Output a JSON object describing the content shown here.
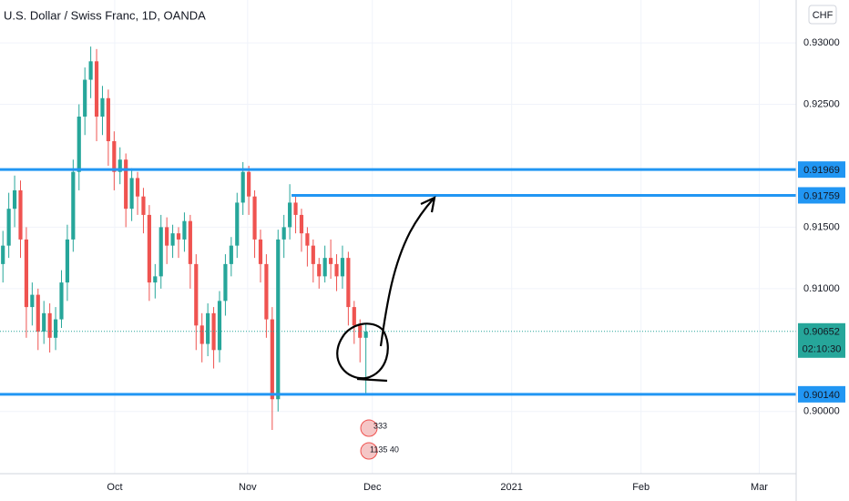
{
  "chart_data": {
    "type": "candlestick",
    "title": "U.S. Dollar / Swiss Franc, 1D, OANDA",
    "currency": "CHF",
    "up_color": "#26a69a",
    "down_color": "#ef5350",
    "line_color": "#2196f3",
    "grid": true,
    "open": [
      0.912,
      0.9135,
      0.9165,
      0.918,
      0.914,
      0.9085,
      0.9095,
      0.9065,
      0.908,
      0.906,
      0.9075,
      0.9105,
      0.914,
      0.9195,
      0.924,
      0.927,
      0.9285,
      0.924,
      0.9255,
      0.922,
      0.9195,
      0.9205,
      0.9165,
      0.919,
      0.9175,
      0.916,
      0.9105,
      0.911,
      0.915,
      0.9135,
      0.9145,
      0.914,
      0.9155,
      0.912,
      0.907,
      0.9055,
      0.908,
      0.905,
      0.909,
      0.912,
      0.9135,
      0.917,
      0.9195,
      0.9175,
      0.914,
      0.912,
      0.9075,
      0.901,
      0.914,
      0.915,
      0.917,
      0.916,
      0.9145,
      0.9135,
      0.912,
      0.911,
      0.9125,
      0.912,
      0.911,
      0.9125,
      0.9085,
      0.907,
      0.906
    ],
    "high": [
      0.9147,
      0.9178,
      0.9192,
      0.9188,
      0.915,
      0.9105,
      0.91,
      0.909,
      0.9088,
      0.9085,
      0.9115,
      0.9152,
      0.9205,
      0.925,
      0.928,
      0.9297,
      0.9295,
      0.9265,
      0.9262,
      0.9228,
      0.9215,
      0.921,
      0.9198,
      0.9195,
      0.9182,
      0.9168,
      0.912,
      0.916,
      0.9158,
      0.9152,
      0.915,
      0.9162,
      0.916,
      0.9128,
      0.908,
      0.9088,
      0.9085,
      0.9098,
      0.9128,
      0.9142,
      0.9178,
      0.9203,
      0.92,
      0.918,
      0.9148,
      0.9128,
      0.9085,
      0.9148,
      0.916,
      0.9185,
      0.9175,
      0.9165,
      0.915,
      0.914,
      0.9125,
      0.9135,
      0.914,
      0.9128,
      0.9135,
      0.913,
      0.909,
      0.9075,
      0.9072
    ],
    "low": [
      0.9105,
      0.9125,
      0.915,
      0.9125,
      0.906,
      0.907,
      0.905,
      0.9055,
      0.9048,
      0.905,
      0.9068,
      0.909,
      0.913,
      0.918,
      0.9225,
      0.9255,
      0.922,
      0.9225,
      0.92,
      0.918,
      0.9185,
      0.915,
      0.9155,
      0.916,
      0.9145,
      0.909,
      0.9092,
      0.91,
      0.912,
      0.9125,
      0.9125,
      0.913,
      0.91,
      0.905,
      0.904,
      0.9045,
      0.9035,
      0.904,
      0.9078,
      0.911,
      0.9125,
      0.916,
      0.916,
      0.9125,
      0.9105,
      0.906,
      0.8985,
      0.9,
      0.9125,
      0.914,
      0.9145,
      0.913,
      0.9118,
      0.9105,
      0.91,
      0.9105,
      0.9108,
      0.9098,
      0.91,
      0.907,
      0.9055,
      0.904,
      0.9015
    ],
    "close": [
      0.9135,
      0.9165,
      0.918,
      0.914,
      0.9085,
      0.9095,
      0.9065,
      0.908,
      0.906,
      0.9075,
      0.9105,
      0.914,
      0.9195,
      0.924,
      0.927,
      0.9285,
      0.924,
      0.9255,
      0.922,
      0.9195,
      0.9205,
      0.9165,
      0.919,
      0.9175,
      0.916,
      0.9105,
      0.911,
      0.915,
      0.9135,
      0.9145,
      0.914,
      0.9155,
      0.912,
      0.907,
      0.9055,
      0.908,
      0.905,
      0.909,
      0.912,
      0.9135,
      0.917,
      0.9195,
      0.9175,
      0.914,
      0.912,
      0.9075,
      0.901,
      0.914,
      0.915,
      0.917,
      0.916,
      0.9145,
      0.9135,
      0.912,
      0.911,
      0.9125,
      0.912,
      0.911,
      0.9125,
      0.9085,
      0.907,
      0.906,
      0.9065
    ],
    "xlim": [
      -0.5,
      135.5
    ],
    "ylim": [
      0.89494,
      0.93349
    ],
    "xticks": [
      {
        "value": 19.1,
        "label": "Oct"
      },
      {
        "value": 41.8,
        "label": "Nov"
      },
      {
        "value": 63.1,
        "label": "Dec"
      },
      {
        "value": 86.9,
        "label": "2021"
      },
      {
        "value": 109,
        "label": "Feb"
      },
      {
        "value": 129.2,
        "label": "Mar"
      }
    ],
    "yticks": [
      {
        "value": 0.93,
        "label": "0.93000"
      },
      {
        "value": 0.925,
        "label": "0.92500"
      },
      {
        "value": 0.915,
        "label": "0.91500"
      },
      {
        "value": 0.91,
        "label": "0.91000"
      },
      {
        "value": 0.9,
        "label": "0.90000"
      }
    ],
    "price_lines": [
      {
        "value": 0.91969,
        "label": "0.91969",
        "from_x": -0.5
      },
      {
        "value": 0.91759,
        "label": "0.91759",
        "from_x": 49.3
      },
      {
        "value": 0.9014,
        "label": "0.90140",
        "from_x": -0.5
      }
    ],
    "last_price": {
      "value": 0.90652,
      "label": "0.90652",
      "countdown": "02:10:30"
    },
    "events": [
      "333",
      "1135 40"
    ]
  }
}
